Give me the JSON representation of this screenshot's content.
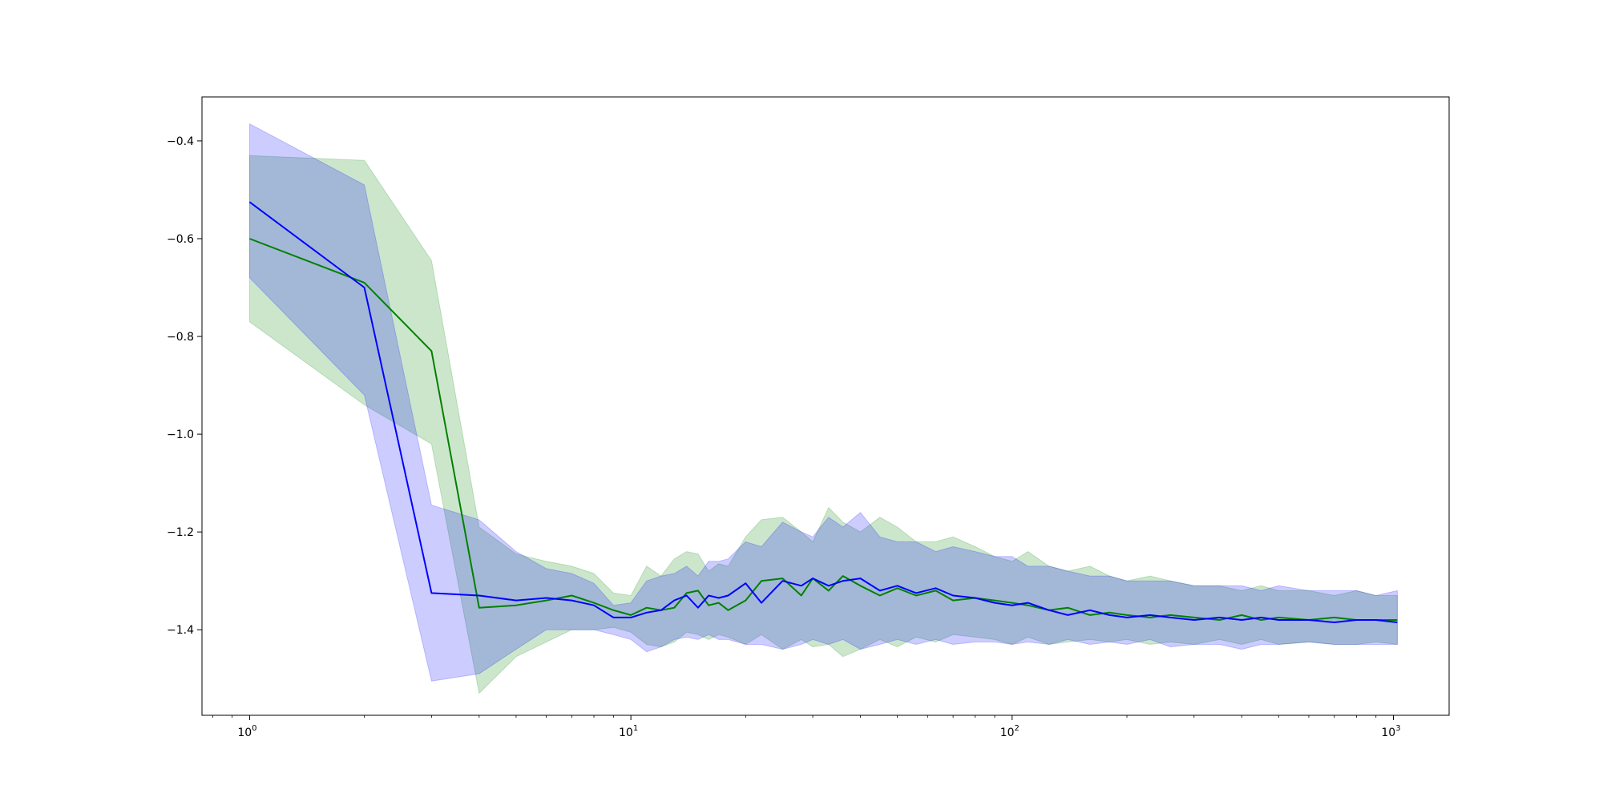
{
  "chart_data": {
    "type": "line",
    "title": "",
    "xlabel": "",
    "ylabel": "",
    "xscale": "log",
    "xlim": [
      0.75,
      1400
    ],
    "ylim": [
      -1.575,
      -0.31
    ],
    "grid": false,
    "legend": "none",
    "x_ticks": [
      {
        "value": 1,
        "base": "10",
        "exp": "0"
      },
      {
        "value": 10,
        "base": "10",
        "exp": "1"
      },
      {
        "value": 100,
        "base": "10",
        "exp": "2"
      },
      {
        "value": 1000,
        "base": "10",
        "exp": "3"
      }
    ],
    "y_ticks": [
      {
        "value": -0.4,
        "label": "−0.4"
      },
      {
        "value": -0.6,
        "label": "−0.6"
      },
      {
        "value": -0.8,
        "label": "−0.8"
      },
      {
        "value": -1.0,
        "label": "−1.0"
      },
      {
        "value": -1.2,
        "label": "−1.2"
      },
      {
        "value": -1.4,
        "label": "−1.4"
      }
    ],
    "series": [
      {
        "color": "#008000",
        "band_color": "#008000",
        "band_opacity": 0.2,
        "x": [
          1,
          2,
          3,
          4,
          5,
          6,
          7,
          8,
          9,
          10,
          11,
          12,
          13,
          14,
          15,
          16,
          17,
          18,
          20,
          22,
          25,
          28,
          30,
          33,
          36,
          40,
          45,
          50,
          56,
          63,
          70,
          80,
          90,
          100,
          110,
          125,
          140,
          160,
          180,
          200,
          230,
          260,
          300,
          350,
          400,
          450,
          500,
          600,
          700,
          800,
          900,
          1024
        ],
        "mean": [
          -0.6,
          -0.69,
          -0.83,
          -1.355,
          -1.35,
          -1.34,
          -1.33,
          -1.345,
          -1.36,
          -1.37,
          -1.355,
          -1.36,
          -1.355,
          -1.325,
          -1.32,
          -1.35,
          -1.345,
          -1.36,
          -1.34,
          -1.3,
          -1.295,
          -1.33,
          -1.295,
          -1.32,
          -1.29,
          -1.31,
          -1.33,
          -1.315,
          -1.33,
          -1.32,
          -1.34,
          -1.335,
          -1.34,
          -1.345,
          -1.35,
          -1.36,
          -1.355,
          -1.37,
          -1.365,
          -1.37,
          -1.375,
          -1.37,
          -1.375,
          -1.38,
          -1.37,
          -1.38,
          -1.375,
          -1.38,
          -1.375,
          -1.38,
          -1.38,
          -1.38
        ],
        "upper": [
          -0.43,
          -0.44,
          -0.645,
          -1.19,
          -1.245,
          -1.26,
          -1.27,
          -1.285,
          -1.325,
          -1.33,
          -1.27,
          -1.29,
          -1.255,
          -1.24,
          -1.245,
          -1.28,
          -1.265,
          -1.27,
          -1.21,
          -1.175,
          -1.17,
          -1.2,
          -1.22,
          -1.15,
          -1.18,
          -1.2,
          -1.17,
          -1.19,
          -1.22,
          -1.22,
          -1.21,
          -1.23,
          -1.25,
          -1.26,
          -1.24,
          -1.27,
          -1.28,
          -1.27,
          -1.29,
          -1.3,
          -1.29,
          -1.3,
          -1.31,
          -1.31,
          -1.32,
          -1.31,
          -1.32,
          -1.32,
          -1.33,
          -1.32,
          -1.33,
          -1.33
        ],
        "lower": [
          -0.77,
          -0.94,
          -1.02,
          -1.53,
          -1.455,
          -1.425,
          -1.4,
          -1.4,
          -1.395,
          -1.405,
          -1.43,
          -1.435,
          -1.425,
          -1.405,
          -1.41,
          -1.42,
          -1.41,
          -1.415,
          -1.43,
          -1.41,
          -1.44,
          -1.42,
          -1.435,
          -1.43,
          -1.455,
          -1.44,
          -1.42,
          -1.435,
          -1.415,
          -1.425,
          -1.41,
          -1.415,
          -1.42,
          -1.43,
          -1.415,
          -1.43,
          -1.425,
          -1.42,
          -1.425,
          -1.42,
          -1.43,
          -1.425,
          -1.43,
          -1.42,
          -1.43,
          -1.42,
          -1.43,
          -1.425,
          -1.43,
          -1.43,
          -1.425,
          -1.43
        ]
      },
      {
        "color": "#0000ff",
        "band_color": "#0000ff",
        "band_opacity": 0.2,
        "x": [
          1,
          2,
          3,
          4,
          5,
          6,
          7,
          8,
          9,
          10,
          11,
          12,
          13,
          14,
          15,
          16,
          17,
          18,
          20,
          22,
          25,
          28,
          30,
          33,
          36,
          40,
          45,
          50,
          56,
          63,
          70,
          80,
          90,
          100,
          110,
          125,
          140,
          160,
          180,
          200,
          230,
          260,
          300,
          350,
          400,
          450,
          500,
          600,
          700,
          800,
          900,
          1024
        ],
        "mean": [
          -0.525,
          -0.7,
          -1.325,
          -1.33,
          -1.34,
          -1.335,
          -1.34,
          -1.35,
          -1.375,
          -1.375,
          -1.365,
          -1.36,
          -1.34,
          -1.33,
          -1.355,
          -1.33,
          -1.335,
          -1.33,
          -1.305,
          -1.345,
          -1.3,
          -1.31,
          -1.295,
          -1.31,
          -1.3,
          -1.295,
          -1.32,
          -1.31,
          -1.325,
          -1.315,
          -1.33,
          -1.335,
          -1.345,
          -1.35,
          -1.345,
          -1.36,
          -1.37,
          -1.36,
          -1.37,
          -1.375,
          -1.37,
          -1.375,
          -1.38,
          -1.375,
          -1.38,
          -1.375,
          -1.38,
          -1.38,
          -1.385,
          -1.38,
          -1.38,
          -1.385
        ],
        "upper": [
          -0.365,
          -0.49,
          -1.145,
          -1.175,
          -1.24,
          -1.275,
          -1.285,
          -1.305,
          -1.35,
          -1.345,
          -1.3,
          -1.29,
          -1.285,
          -1.27,
          -1.29,
          -1.26,
          -1.26,
          -1.255,
          -1.22,
          -1.23,
          -1.18,
          -1.2,
          -1.21,
          -1.17,
          -1.19,
          -1.16,
          -1.21,
          -1.22,
          -1.22,
          -1.24,
          -1.23,
          -1.24,
          -1.25,
          -1.25,
          -1.27,
          -1.27,
          -1.28,
          -1.29,
          -1.29,
          -1.3,
          -1.3,
          -1.3,
          -1.31,
          -1.31,
          -1.31,
          -1.32,
          -1.31,
          -1.32,
          -1.32,
          -1.32,
          -1.33,
          -1.32
        ],
        "lower": [
          -0.68,
          -0.92,
          -1.505,
          -1.49,
          -1.44,
          -1.4,
          -1.4,
          -1.4,
          -1.41,
          -1.42,
          -1.445,
          -1.435,
          -1.42,
          -1.415,
          -1.42,
          -1.41,
          -1.42,
          -1.42,
          -1.43,
          -1.43,
          -1.44,
          -1.43,
          -1.42,
          -1.43,
          -1.42,
          -1.44,
          -1.43,
          -1.42,
          -1.43,
          -1.42,
          -1.43,
          -1.425,
          -1.425,
          -1.43,
          -1.425,
          -1.43,
          -1.42,
          -1.43,
          -1.425,
          -1.43,
          -1.42,
          -1.435,
          -1.43,
          -1.43,
          -1.44,
          -1.43,
          -1.43,
          -1.425,
          -1.43,
          -1.43,
          -1.43,
          -1.43
        ]
      }
    ]
  }
}
